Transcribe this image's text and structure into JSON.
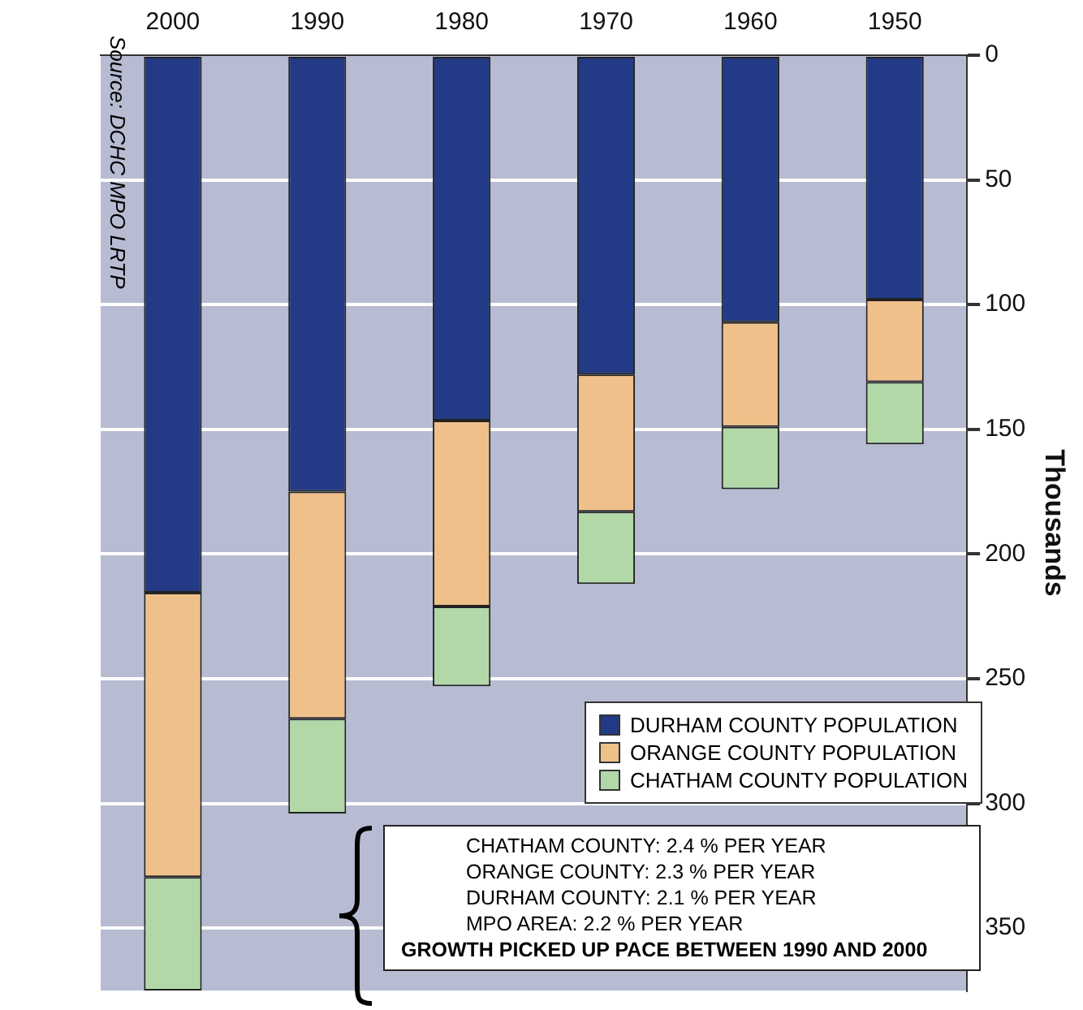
{
  "chart_data": {
    "type": "bar",
    "stacked": true,
    "ylabel": "Thousands",
    "categories": [
      "2000",
      "1990",
      "1980",
      "1970",
      "1960",
      "1950"
    ],
    "series": [
      {
        "name": "DURHAM COUNTY POPULATION",
        "color": "#233a86",
        "values": [
          215.5,
          175,
          146.5,
          128,
          107,
          98
        ]
      },
      {
        "name": "ORANGE COUNTY POPULATION",
        "color": "#f0c08a",
        "values": [
          114,
          91,
          74.5,
          55,
          42,
          33
        ]
      },
      {
        "name": "CHATHAM COUNTY POPULATION",
        "color": "#b2d8a8",
        "values": [
          45.5,
          38,
          32,
          29,
          25,
          25
        ]
      }
    ],
    "ylim": [
      375,
      0
    ],
    "yticks": [
      0,
      50,
      100,
      150,
      200,
      250,
      300,
      350
    ],
    "grid": "y",
    "legend": "bottom right",
    "annotations": [
      "CHATHAM COUNTY: 2.4 % PER YEAR",
      "ORANGE COUNTY: 2.3 % PER YEAR",
      "DURHAM COUNTY: 2.1 % PER YEAR",
      "MPO AREA: 2.2 % PER YEAR",
      "GROWTH PICKED UP PACE BETWEEN 1990 AND 2000",
      "Source: DCHC MPO LRTP"
    ]
  }
}
